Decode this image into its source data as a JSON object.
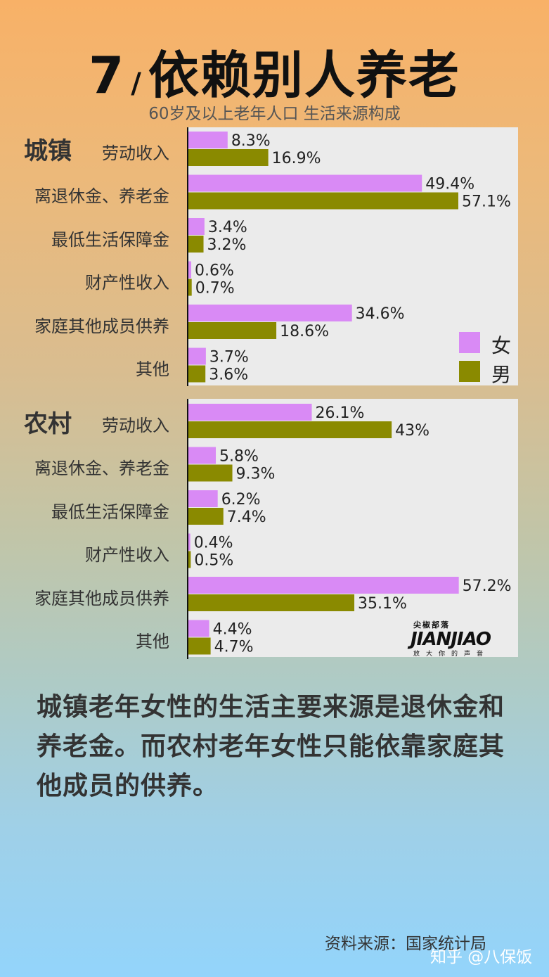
{
  "title": {
    "number": "7",
    "slash": "/",
    "text": "依赖别人养老"
  },
  "subtitle": "60岁及以上老年人口 生活来源构成",
  "colors": {
    "female": "#d98af5",
    "male": "#8a8a00"
  },
  "legend": {
    "female": "女",
    "male": "男"
  },
  "logo": {
    "top": "尖椒部落",
    "main": "JIANJIAO",
    "bottom": "放大你的声音"
  },
  "summary": "城镇老年女性的生活主要来源是退休金和养老金。而农村老年女性只能依靠家庭其他成员的供养。",
  "source": "资料来源：国家统计局",
  "watermark": "知乎 @八保饭",
  "chart_data": [
    {
      "type": "bar",
      "orientation": "horizontal",
      "section": "城镇",
      "categories": [
        "劳动收入",
        "离退休金、养老金",
        "最低生活保障金",
        "财产性收入",
        "家庭其他成员供养",
        "其他"
      ],
      "series": [
        {
          "name": "女",
          "values": [
            8.3,
            49.4,
            3.4,
            0.6,
            34.6,
            3.7
          ],
          "labels": [
            "8.3%",
            "49.4%",
            "3.4%",
            "0.6%",
            "34.6%",
            "3.7%"
          ]
        },
        {
          "name": "男",
          "values": [
            16.9,
            57.1,
            3.2,
            0.7,
            18.6,
            3.6
          ],
          "labels": [
            "16.9%",
            "57.1%",
            "3.2%",
            "0.7%",
            "18.6%",
            "3.6%"
          ]
        }
      ],
      "xlim": [
        0,
        60
      ],
      "legend": "bottom-right"
    },
    {
      "type": "bar",
      "orientation": "horizontal",
      "section": "农村",
      "categories": [
        "劳动收入",
        "离退休金、养老金",
        "最低生活保障金",
        "财产性收入",
        "家庭其他成员供养",
        "其他"
      ],
      "series": [
        {
          "name": "女",
          "values": [
            26.1,
            5.8,
            6.2,
            0.4,
            57.2,
            4.4
          ],
          "labels": [
            "26.1%",
            "5.8%",
            "6.2%",
            "0.4%",
            "57.2%",
            "4.4%"
          ]
        },
        {
          "name": "男",
          "values": [
            43,
            9.3,
            7.4,
            0.5,
            35.1,
            4.7
          ],
          "labels": [
            "43%",
            "9.3%",
            "7.4%",
            "0.5%",
            "35.1%",
            "4.7%"
          ]
        }
      ],
      "xlim": [
        0,
        60
      ]
    }
  ]
}
